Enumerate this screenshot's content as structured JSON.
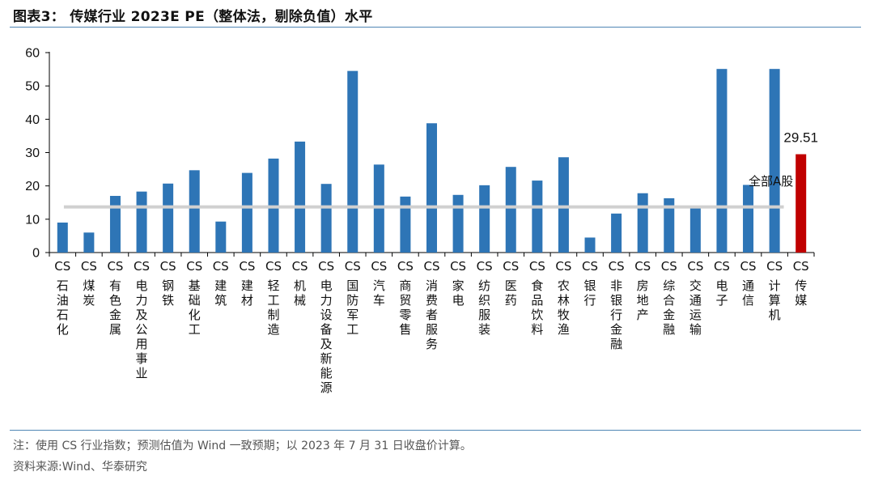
{
  "title": "图表3：  传媒行业 2023E PE（整体法，剔除负值）水平",
  "note": "注：使用 CS 行业指数；预测估值为 Wind 一致预期；以 2023 年 7 月 31 日收盘价计算。",
  "source": "资料来源:Wind、华泰研究",
  "colors": {
    "bar": "#2e75b6",
    "highlight_bar": "#c00000",
    "reference_line": "#d0d0d0",
    "rule": "#4f86b4"
  },
  "chart_data": {
    "type": "bar",
    "categories": [
      "CS石油石化",
      "CS煤炭",
      "CS有色金属",
      "CS电力及公用事业",
      "CS钢铁",
      "CS基础化工",
      "CS建筑",
      "CS建材",
      "CS轻工制造",
      "CS机械",
      "CS电力设备及新能源",
      "CS国防军工",
      "CS汽车",
      "CS商贸零售",
      "CS消费者服务",
      "CS家电",
      "CS纺织服装",
      "CS医药",
      "CS食品饮料",
      "CS农林牧渔",
      "CS银行",
      "CS非银行金融",
      "CS房地产",
      "CS综合金融",
      "CS交通运输",
      "CS电子",
      "CS通信",
      "CS计算机",
      "CS传媒"
    ],
    "values": [
      9.0,
      6.0,
      17.0,
      18.3,
      20.7,
      24.7,
      9.3,
      23.9,
      28.2,
      33.3,
      20.6,
      54.5,
      26.4,
      16.8,
      38.8,
      17.3,
      20.2,
      25.7,
      21.6,
      28.6,
      4.5,
      11.7,
      17.8,
      16.3,
      13.5,
      55.1,
      20.3,
      55.1,
      29.51
    ],
    "highlight": {
      "category": "CS传媒",
      "label": "29.51"
    },
    "reference_line": {
      "label": "全部A股",
      "value": 13.7
    },
    "ylim": [
      0,
      60
    ],
    "yticks": [
      0,
      10,
      20,
      30,
      40,
      50,
      60
    ],
    "grid": false,
    "legend": "none"
  }
}
